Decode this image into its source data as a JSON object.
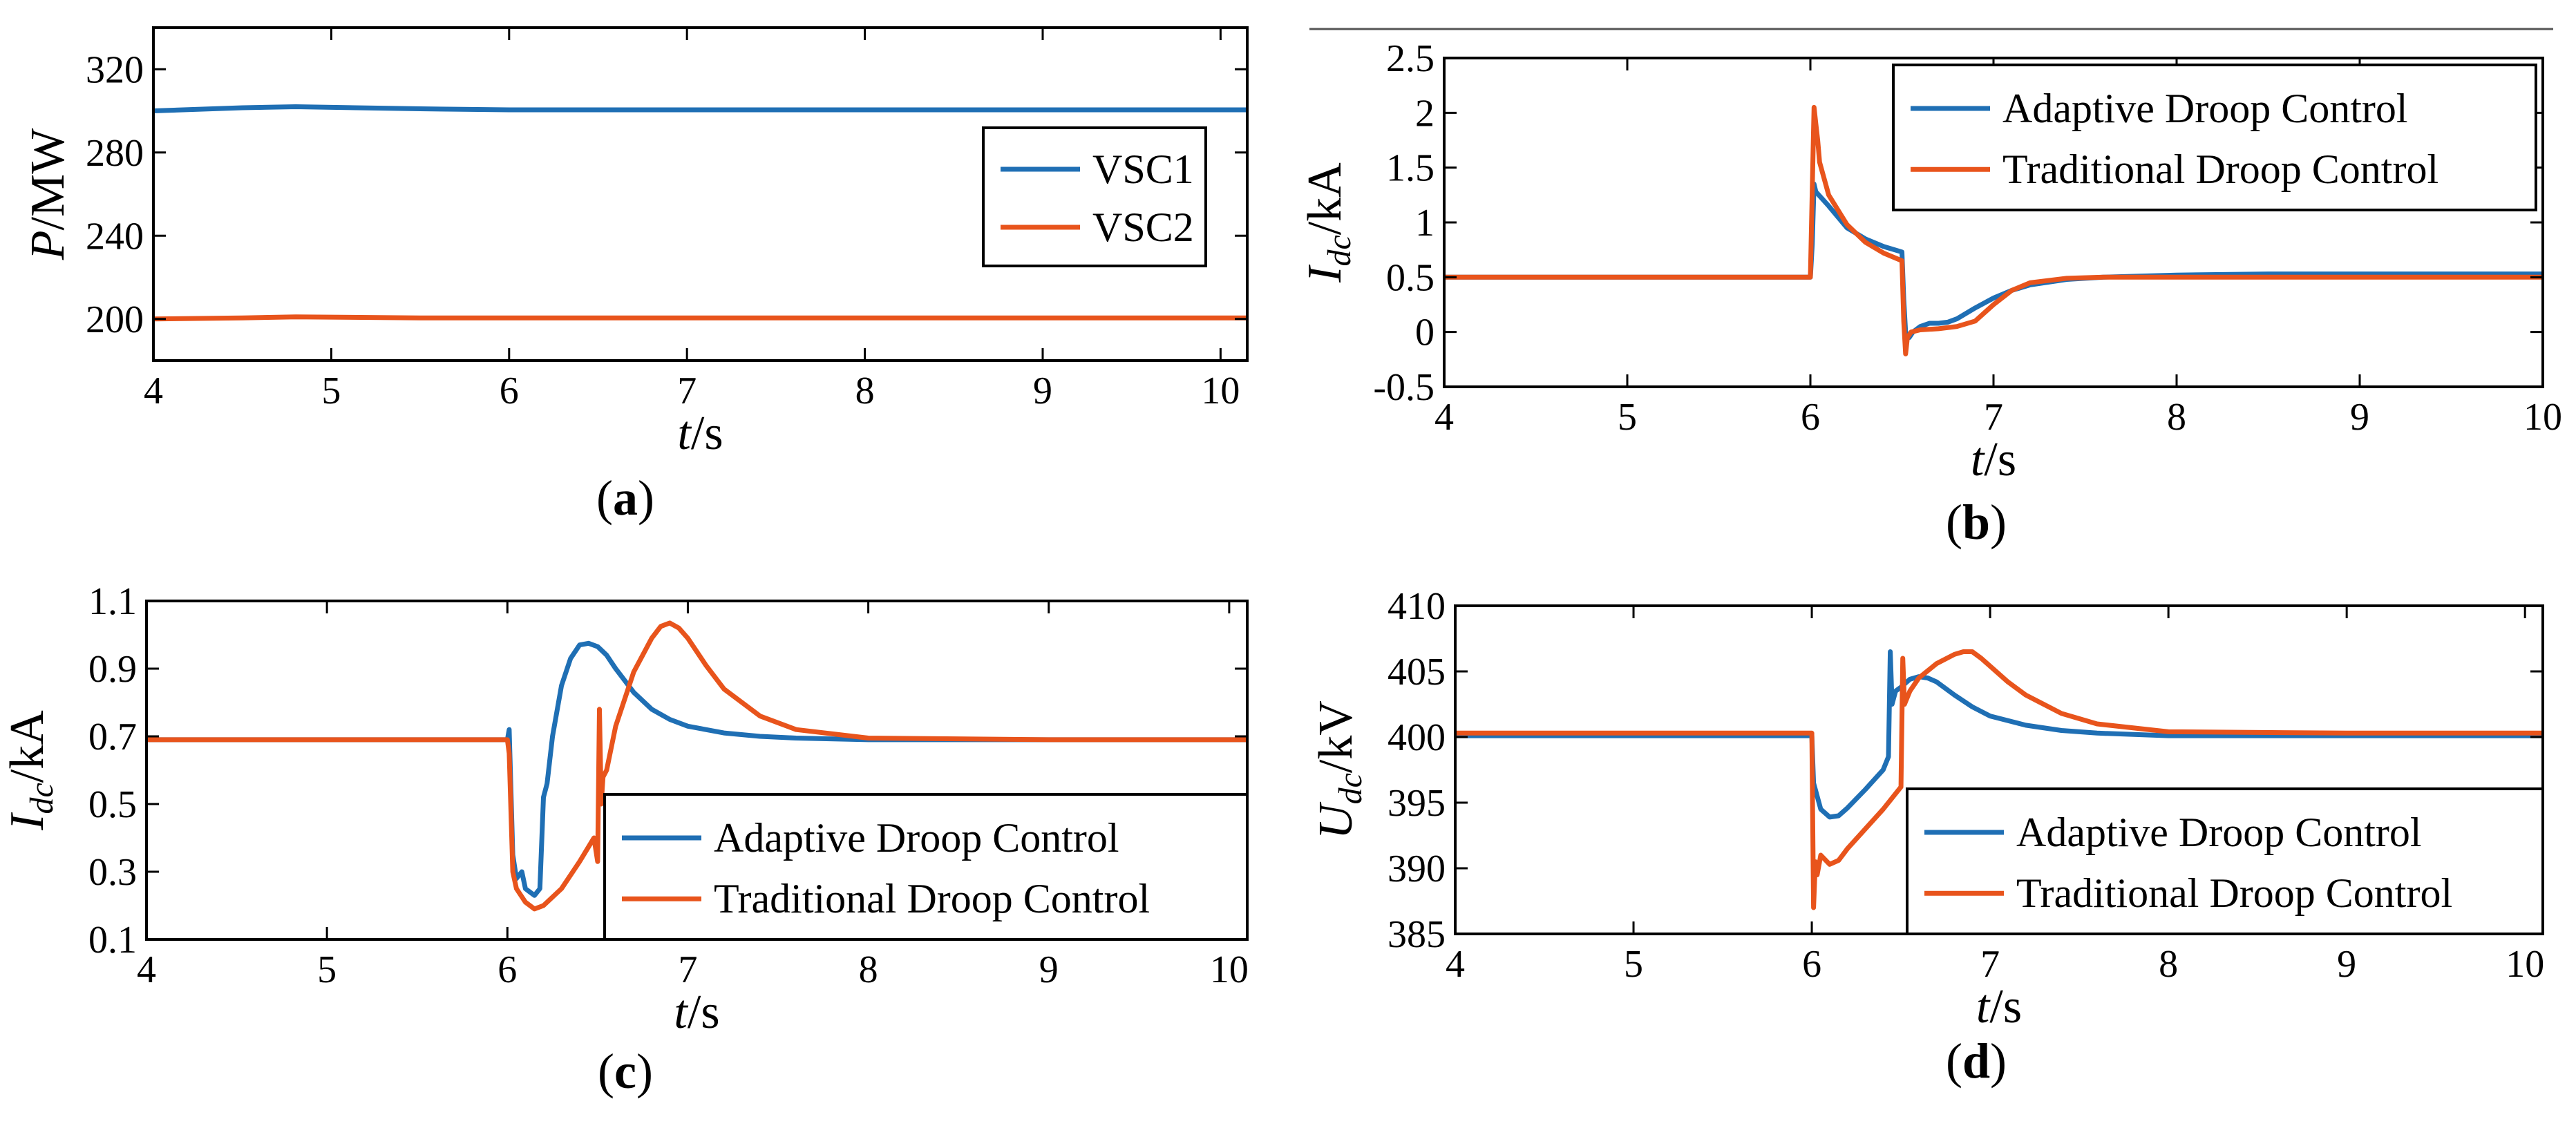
{
  "colors": {
    "blue": "#1f6fb4",
    "orange": "#e8541c",
    "axis": "#000000"
  },
  "chart_data": [
    {
      "id": "a",
      "type": "line",
      "caption_letter": "a",
      "xlabel_var": "t",
      "xlabel_unit": "/s",
      "ylabel_var": "P",
      "ylabel_sub": "",
      "ylabel_unit": "/MW",
      "xlim": [
        4,
        10.15
      ],
      "ylim": [
        180,
        340
      ],
      "xticks": [
        4,
        5,
        6,
        7,
        8,
        9,
        10
      ],
      "yticks": [
        200,
        240,
        280,
        320
      ],
      "legend_position": "top-right",
      "series": [
        {
          "name": "VSC1",
          "color_key": "blue",
          "x": [
            4,
            4.5,
            4.8,
            5.5,
            6,
            7,
            8,
            9,
            10,
            10.15
          ],
          "y": [
            300,
            301.5,
            302,
            301,
            300.5,
            300.5,
            300.5,
            300.5,
            300.5,
            300.5
          ]
        },
        {
          "name": "VSC2",
          "color_key": "orange",
          "x": [
            4,
            4.5,
            4.8,
            5.5,
            6,
            7,
            8,
            9,
            10,
            10.15
          ],
          "y": [
            200,
            200.5,
            201,
            200.5,
            200.5,
            200.5,
            200.5,
            200.5,
            200.5,
            200.5
          ]
        }
      ]
    },
    {
      "id": "b",
      "type": "line",
      "caption_letter": "b",
      "xlabel_var": "t",
      "xlabel_unit": "/s",
      "ylabel_var": "I",
      "ylabel_sub": "dc",
      "ylabel_unit": "/kA",
      "xlim": [
        4,
        10
      ],
      "ylim": [
        -0.5,
        2.5
      ],
      "xticks": [
        4,
        5,
        6,
        7,
        8,
        9,
        10
      ],
      "yticks": [
        -0.5,
        0,
        0.5,
        1,
        1.5,
        2,
        2.5
      ],
      "yticklabels": [
        "-0.5",
        "0",
        "0.5",
        "1",
        "1.5",
        "2",
        "2.5"
      ],
      "legend_position": "top-right",
      "series": [
        {
          "name": "Adaptive Droop Control",
          "color_key": "blue",
          "x": [
            4,
            6,
            6.01,
            6.02,
            6.03,
            6.1,
            6.2,
            6.3,
            6.4,
            6.5,
            6.51,
            6.52,
            6.54,
            6.56,
            6.6,
            6.65,
            6.7,
            6.75,
            6.8,
            6.9,
            7.0,
            7.1,
            7.2,
            7.4,
            7.6,
            7.8,
            8,
            8.5,
            9,
            10
          ],
          "y": [
            0.5,
            0.5,
            0.8,
            1.35,
            1.28,
            1.15,
            0.95,
            0.85,
            0.78,
            0.73,
            0.3,
            0.0,
            -0.05,
            0.0,
            0.05,
            0.08,
            0.08,
            0.09,
            0.12,
            0.22,
            0.31,
            0.38,
            0.43,
            0.48,
            0.5,
            0.51,
            0.52,
            0.53,
            0.53,
            0.53
          ]
        },
        {
          "name": "Traditional Droop Control",
          "color_key": "orange",
          "x": [
            4,
            6,
            6.01,
            6.02,
            6.03,
            6.04,
            6.05,
            6.1,
            6.2,
            6.3,
            6.4,
            6.5,
            6.51,
            6.52,
            6.53,
            6.55,
            6.6,
            6.7,
            6.8,
            6.9,
            7.0,
            7.1,
            7.2,
            7.4,
            7.6,
            8,
            9,
            10
          ],
          "y": [
            0.5,
            0.5,
            1.3,
            2.05,
            1.9,
            1.75,
            1.55,
            1.25,
            0.98,
            0.82,
            0.72,
            0.65,
            0.1,
            -0.2,
            -0.05,
            0.0,
            0.02,
            0.03,
            0.05,
            0.1,
            0.25,
            0.38,
            0.45,
            0.49,
            0.5,
            0.5,
            0.5,
            0.5
          ]
        }
      ]
    },
    {
      "id": "c",
      "type": "line",
      "caption_letter": "c",
      "xlabel_var": "t",
      "xlabel_unit": "/s",
      "ylabel_var": "I",
      "ylabel_sub": "dc",
      "ylabel_unit": "/kA",
      "xlim": [
        4,
        10.1
      ],
      "ylim": [
        0.1,
        1.1
      ],
      "xticks": [
        4,
        5,
        6,
        7,
        8,
        9,
        10
      ],
      "yticks": [
        0.1,
        0.3,
        0.5,
        0.7,
        0.9,
        1.1
      ],
      "yticklabels": [
        "0.1",
        "0.3",
        "0.5",
        "0.7",
        "0.9",
        "1.1"
      ],
      "legend_position": "bottom-right",
      "series": [
        {
          "name": "Adaptive Droop Control",
          "color_key": "blue",
          "x": [
            4,
            6,
            6.01,
            6.03,
            6.05,
            6.08,
            6.1,
            6.15,
            6.18,
            6.2,
            6.22,
            6.25,
            6.3,
            6.35,
            6.4,
            6.45,
            6.5,
            6.55,
            6.6,
            6.7,
            6.8,
            6.9,
            7.0,
            7.2,
            7.4,
            7.6,
            8,
            9,
            10.1
          ],
          "y": [
            0.69,
            0.69,
            0.72,
            0.35,
            0.28,
            0.3,
            0.25,
            0.23,
            0.25,
            0.52,
            0.56,
            0.7,
            0.85,
            0.93,
            0.97,
            0.975,
            0.965,
            0.94,
            0.9,
            0.83,
            0.78,
            0.75,
            0.73,
            0.71,
            0.7,
            0.695,
            0.69,
            0.69,
            0.69
          ]
        },
        {
          "name": "Traditional Droop Control",
          "color_key": "orange",
          "x": [
            4,
            6,
            6.01,
            6.03,
            6.05,
            6.1,
            6.15,
            6.2,
            6.3,
            6.4,
            6.48,
            6.5,
            6.51,
            6.52,
            6.53,
            6.55,
            6.6,
            6.7,
            6.8,
            6.85,
            6.9,
            6.95,
            7.0,
            7.1,
            7.2,
            7.4,
            7.6,
            8,
            9,
            10.1
          ],
          "y": [
            0.69,
            0.69,
            0.65,
            0.3,
            0.25,
            0.21,
            0.19,
            0.2,
            0.25,
            0.33,
            0.4,
            0.33,
            0.78,
            0.5,
            0.58,
            0.6,
            0.73,
            0.89,
            0.99,
            1.025,
            1.035,
            1.02,
            0.99,
            0.91,
            0.84,
            0.76,
            0.72,
            0.695,
            0.69,
            0.69
          ]
        }
      ]
    },
    {
      "id": "d",
      "type": "line",
      "caption_letter": "d",
      "xlabel_var": "t",
      "xlabel_unit": "/s",
      "ylabel_var": "U",
      "ylabel_sub": "dc",
      "ylabel_unit": "/kV",
      "xlim": [
        4,
        10.1
      ],
      "ylim": [
        385,
        410
      ],
      "xticks": [
        4,
        5,
        6,
        7,
        8,
        9,
        10
      ],
      "yticks": [
        385,
        390,
        395,
        400,
        405,
        410
      ],
      "legend_position": "bottom-right",
      "series": [
        {
          "name": "Adaptive Droop Control",
          "color_key": "blue",
          "x": [
            4,
            6,
            6.01,
            6.03,
            6.05,
            6.1,
            6.15,
            6.2,
            6.3,
            6.4,
            6.43,
            6.44,
            6.45,
            6.47,
            6.5,
            6.55,
            6.6,
            6.65,
            6.7,
            6.8,
            6.9,
            7.0,
            7.2,
            7.4,
            7.6,
            8,
            9,
            10.1
          ],
          "y": [
            400.1,
            400.1,
            396.5,
            395.5,
            394.5,
            393.9,
            394,
            394.6,
            396,
            397.5,
            398.5,
            406.5,
            402.5,
            403.5,
            403.8,
            404.4,
            404.6,
            404.5,
            404.2,
            403.2,
            402.3,
            401.6,
            400.9,
            400.5,
            400.3,
            400.1,
            400.1,
            400.1
          ]
        },
        {
          "name": "Traditional Droop Control",
          "color_key": "orange",
          "x": [
            4,
            6,
            6.01,
            6.02,
            6.03,
            6.05,
            6.1,
            6.15,
            6.2,
            6.3,
            6.4,
            6.5,
            6.51,
            6.52,
            6.55,
            6.6,
            6.7,
            6.8,
            6.85,
            6.9,
            6.95,
            7.0,
            7.1,
            7.2,
            7.4,
            7.6,
            8,
            9,
            10.1
          ],
          "y": [
            400.3,
            400.3,
            387,
            390.5,
            389.5,
            391,
            390.3,
            390.6,
            391.5,
            393,
            394.5,
            396.2,
            406,
            402.5,
            403.5,
            404.5,
            405.6,
            406.3,
            406.5,
            406.5,
            406,
            405.4,
            404.2,
            403.2,
            401.8,
            401,
            400.4,
            400.3,
            400.3
          ]
        }
      ]
    }
  ]
}
